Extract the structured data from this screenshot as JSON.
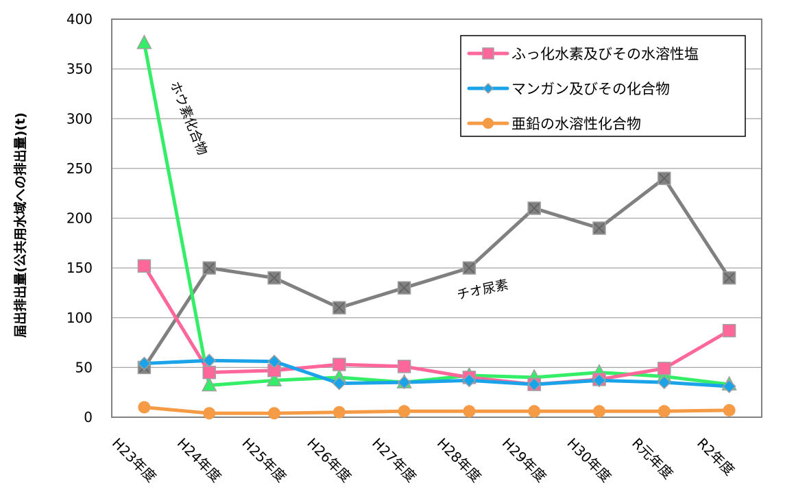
{
  "chart_data": {
    "type": "line",
    "title": "",
    "ylabel": "届出排出量(公共用水域への排出量)(t)",
    "xlabel": "",
    "ylim": [
      0,
      400
    ],
    "yticks": [
      0,
      50,
      100,
      150,
      200,
      250,
      300,
      350,
      400
    ],
    "grid": true,
    "legend_position": "top-right",
    "categories": [
      "H23年度",
      "H24年度",
      "H25年度",
      "H26年度",
      "H27年度",
      "H28年度",
      "H29年度",
      "H30年度",
      "R元年度",
      "R2年度"
    ],
    "series": [
      {
        "name": "チオ尿素",
        "color": "#808080",
        "marker": "square-x",
        "values": [
          50,
          150,
          140,
          110,
          130,
          150,
          210,
          190,
          240,
          140
        ]
      },
      {
        "name": "ホウ素化合物",
        "color": "#33ee66",
        "marker": "triangle",
        "values": [
          376,
          32,
          37,
          40,
          35,
          42,
          40,
          45,
          41,
          33
        ]
      },
      {
        "name": "ふっ化水素及びその水溶性塩",
        "color": "#ff6699",
        "marker": "square",
        "values": [
          152,
          45,
          47,
          53,
          51,
          40,
          33,
          38,
          49,
          87
        ]
      },
      {
        "name": "マンガン及びその化合物",
        "color": "#1aa3e8",
        "marker": "diamond",
        "values": [
          54,
          57,
          56,
          34,
          35,
          37,
          33,
          37,
          35,
          31
        ]
      },
      {
        "name": "亜鉛の水溶性化合物",
        "color": "#f59a45",
        "marker": "circle",
        "values": [
          10,
          4,
          4,
          5,
          6,
          6,
          6,
          6,
          6,
          7
        ]
      }
    ],
    "legend": [
      "ふっ化水素及びその水溶性塩",
      "マンガン及びその化合物",
      "亜鉛の水溶性化合物"
    ],
    "annotations": {
      "hou": "ホウ素化合物",
      "thio": "チオ尿素"
    }
  }
}
